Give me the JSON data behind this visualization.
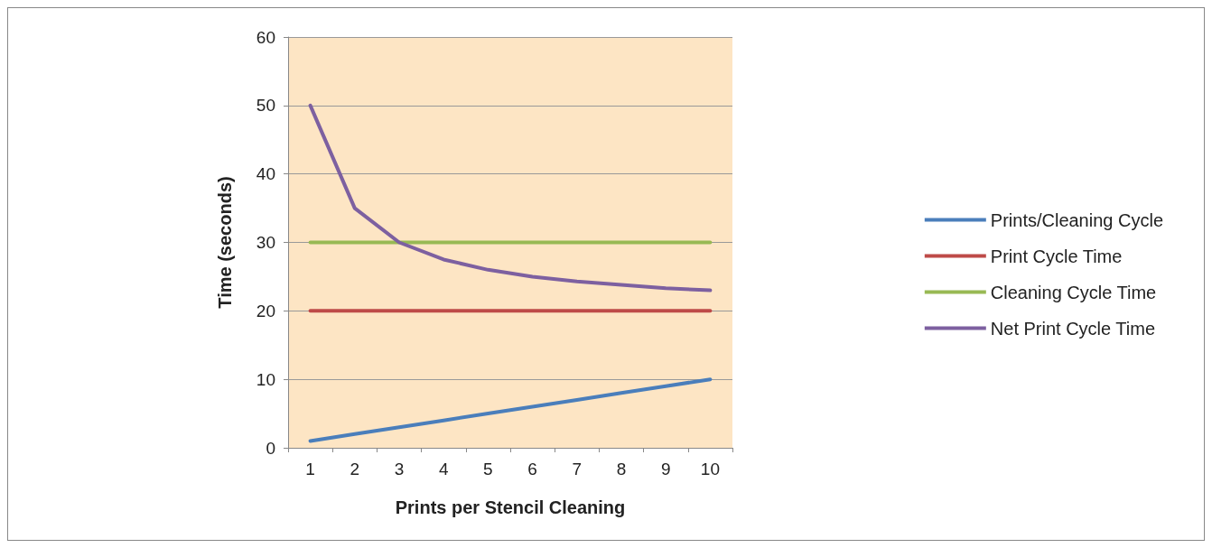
{
  "chart_data": {
    "type": "line",
    "xlabel": "Prints per Stencil Cleaning",
    "ylabel": "Time (seconds)",
    "categories": [
      "1",
      "2",
      "3",
      "4",
      "5",
      "6",
      "7",
      "8",
      "9",
      "10"
    ],
    "series": [
      {
        "name": "Prints/Cleaning Cycle",
        "color": "#4a7ebb",
        "values": [
          1,
          2,
          3,
          4,
          5,
          6,
          7,
          8,
          9,
          10
        ]
      },
      {
        "name": "Print Cycle Time",
        "color": "#be4b48",
        "values": [
          20,
          20,
          20,
          20,
          20,
          20,
          20,
          20,
          20,
          20
        ]
      },
      {
        "name": "Cleaning Cycle Time",
        "color": "#98b954",
        "values": [
          30,
          30,
          30,
          30,
          30,
          30,
          30,
          30,
          30,
          30
        ]
      },
      {
        "name": "Net Print Cycle Time",
        "color": "#7d60a0",
        "values": [
          50,
          35,
          30,
          27.5,
          26,
          25,
          24.3,
          23.8,
          23.3,
          23
        ]
      }
    ],
    "ylim": [
      0,
      60
    ],
    "yticks": [
      0,
      10,
      20,
      30,
      40,
      50,
      60
    ],
    "grid": "y",
    "legend": "right",
    "marker": "none",
    "line_style": "solid"
  }
}
